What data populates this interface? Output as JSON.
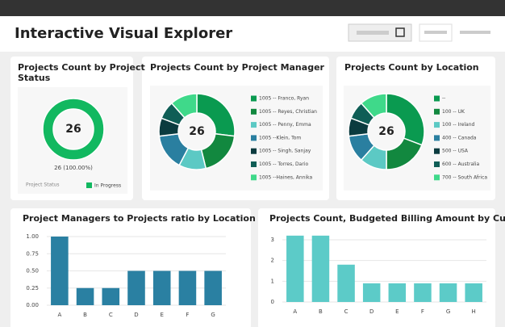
{
  "header": {
    "title": "Interactive Visual Explorer"
  },
  "chart_data": [
    {
      "type": "donut",
      "title": "Projects Count by Project Status",
      "total": 26,
      "categories": [
        "In Progress"
      ],
      "values": [
        26
      ],
      "value_labels": [
        "26 (100.00%)"
      ],
      "colors": [
        "#12b860"
      ],
      "legend_title": "Project Status"
    },
    {
      "type": "donut",
      "title": "Projects Count by Project Manager",
      "total": 26,
      "categories": [
        "1005 -- Franco, Ryan",
        "1005 -- Reyes, Christian",
        "1005 -- Penny, Emma",
        "1005 --Klein, Tom",
        "1005 -- Singh, Sanjay",
        "1005 -- Torres, Dario",
        "1005 --Haines, Annika"
      ],
      "values": [
        7,
        5,
        3,
        4,
        2,
        2,
        3
      ],
      "colors": [
        "#0a9a50",
        "#12883f",
        "#5cc9c4",
        "#2a7fa0",
        "#0b3b3f",
        "#0f5e56",
        "#3fd98a"
      ]
    },
    {
      "type": "donut",
      "title": "Projects Count by Location",
      "total": 26,
      "categories": [
        "--",
        "100 -- UK",
        "100 -- Ireland",
        "400 -- Canada",
        "500 -- USA",
        "600 -- Australia",
        "700 -- South Africa"
      ],
      "values": [
        8,
        5,
        3,
        3,
        2,
        2,
        3
      ],
      "colors": [
        "#0a9a50",
        "#12883f",
        "#5cc9c4",
        "#2a7fa0",
        "#0b3b3f",
        "#0f5e56",
        "#3fd98a"
      ]
    },
    {
      "type": "bar",
      "title": "Project Managers to Projects ratio by Location",
      "categories": [
        "A",
        "B",
        "C",
        "D",
        "E",
        "F",
        "G"
      ],
      "values": [
        1.0,
        0.25,
        0.25,
        0.5,
        0.5,
        0.5,
        0.5
      ],
      "color": "#2a80a2",
      "ylim": [
        0,
        1.1
      ],
      "yticks": [
        {
          "value": 0,
          "label": "0.00"
        },
        {
          "value": 0.25,
          "label": "0.25"
        },
        {
          "value": 0.5,
          "label": "0.50"
        },
        {
          "value": 0.75,
          "label": "0.75"
        },
        {
          "value": 1,
          "label": "1.00"
        }
      ],
      "grid": true
    },
    {
      "type": "bar",
      "title": "Projects Count, Budgeted Billing Amount by Customer",
      "categories": [
        "A",
        "B",
        "C",
        "D",
        "E",
        "F",
        "G",
        "H"
      ],
      "values": [
        3.2,
        3.2,
        1.8,
        0.9,
        0.9,
        0.9,
        0.9,
        0.9
      ],
      "color": "#5ccbc8",
      "ylim": [
        0,
        3.4
      ],
      "yticks": [
        0,
        1,
        2,
        3
      ],
      "grid": true
    }
  ]
}
